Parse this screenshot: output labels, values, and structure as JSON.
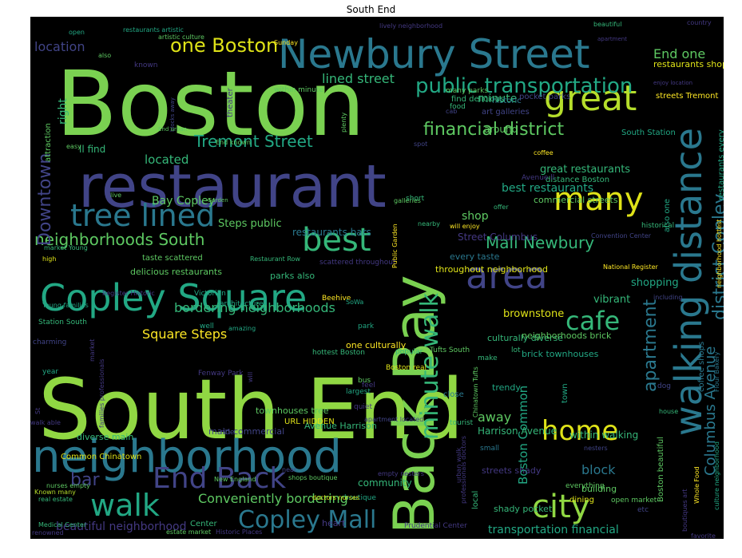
{
  "title": "South End",
  "palette": {
    "background": "#000000",
    "purple": "#440154",
    "indigo": "#3b528b",
    "teal": "#21918c",
    "green": "#5ec962",
    "lime": "#8fd744",
    "yellow": "#fde725"
  },
  "words": [
    {
      "text": "Boston",
      "size": 112,
      "color": "#7ad151"
    },
    {
      "text": "South End",
      "size": 104,
      "color": "#90d743"
    },
    {
      "text": "restaurant",
      "size": 74,
      "color": "#414487"
    },
    {
      "text": "Back Bay",
      "size": 70,
      "color": "#7ad151"
    },
    {
      "text": "neighborhood",
      "size": 56,
      "color": "#2a788e"
    },
    {
      "text": "Newbury Street",
      "size": 50,
      "color": "#2a788e"
    },
    {
      "text": "Copley Square",
      "size": 46,
      "color": "#22a884"
    },
    {
      "text": "walking distance",
      "size": 46,
      "color": "#2a788e"
    },
    {
      "text": "area",
      "size": 46,
      "color": "#414487"
    },
    {
      "text": "great",
      "size": 44,
      "color": "#b5de2b"
    },
    {
      "text": "many",
      "size": 40,
      "color": "#dfe318"
    },
    {
      "text": "tree lined",
      "size": 38,
      "color": "#2a788e"
    },
    {
      "text": "best",
      "size": 40,
      "color": "#35b779"
    },
    {
      "text": "city",
      "size": 40,
      "color": "#90d743"
    },
    {
      "text": "walk",
      "size": 38,
      "color": "#22a884"
    },
    {
      "text": "End Back",
      "size": 36,
      "color": "#414487"
    },
    {
      "text": "home",
      "size": 34,
      "color": "#dfe318"
    },
    {
      "text": "cafe",
      "size": 32,
      "color": "#35b779"
    },
    {
      "text": "minute walk",
      "size": 30,
      "color": "#35b779"
    },
    {
      "text": "Copley Mall",
      "size": 30,
      "color": "#2a788e"
    },
    {
      "text": "district Copley",
      "size": 22,
      "color": "#2a788e"
    },
    {
      "text": "public transportation",
      "size": 26,
      "color": "#22a884"
    },
    {
      "text": "one Boston",
      "size": 24,
      "color": "#dfe318"
    },
    {
      "text": "financial district",
      "size": 22,
      "color": "#5ec962"
    },
    {
      "text": "Tremont Street",
      "size": 20,
      "color": "#22a884"
    },
    {
      "text": "neighborhoods South",
      "size": 20,
      "color": "#5ec962"
    },
    {
      "text": "Mall Newbury",
      "size": 20,
      "color": "#35b779"
    },
    {
      "text": "bar",
      "size": 22,
      "color": "#414487"
    },
    {
      "text": "Downtown",
      "size": 22,
      "color": "#414487"
    },
    {
      "text": "apartment",
      "size": 22,
      "color": "#2a788e"
    },
    {
      "text": "Columbus Avenue",
      "size": 18,
      "color": "#2a788e"
    },
    {
      "text": "Conveniently bordering",
      "size": 16,
      "color": "#5ec962"
    },
    {
      "text": "bordering neighborhoods",
      "size": 16,
      "color": "#35b779"
    },
    {
      "text": "location",
      "size": 16,
      "color": "#414487"
    },
    {
      "text": "lined street",
      "size": 16,
      "color": "#35b779"
    },
    {
      "text": "End one",
      "size": 16,
      "color": "#5ec962"
    },
    {
      "text": "Square Steps",
      "size": 16,
      "color": "#fde725"
    },
    {
      "text": "beautiful neighborhood",
      "size": 14,
      "color": "#443983"
    },
    {
      "text": "transportation financial",
      "size": 14,
      "color": "#22a884"
    },
    {
      "text": "best restaurants",
      "size": 14,
      "color": "#22a884"
    },
    {
      "text": "great restaurants",
      "size": 13,
      "color": "#35b779"
    },
    {
      "text": "Bay Copley",
      "size": 14,
      "color": "#5ec962"
    },
    {
      "text": "block",
      "size": 16,
      "color": "#2a788e"
    },
    {
      "text": "Boston Common",
      "size": 15,
      "color": "#22a884"
    },
    {
      "text": "away",
      "size": 16,
      "color": "#5ec962"
    },
    {
      "text": "shop",
      "size": 14,
      "color": "#5ec962"
    },
    {
      "text": "located",
      "size": 15,
      "color": "#35b779"
    },
    {
      "text": "minute",
      "size": 14,
      "color": "#35b779"
    },
    {
      "text": "right",
      "size": 14,
      "color": "#35b779"
    },
    {
      "text": "brownstone",
      "size": 13,
      "color": "#dfe318"
    },
    {
      "text": "shopping",
      "size": 13,
      "color": "#22a884"
    },
    {
      "text": "vibrant",
      "size": 13,
      "color": "#35b779"
    },
    {
      "text": "Steps public",
      "size": 13,
      "color": "#5ec962"
    },
    {
      "text": "ll find",
      "size": 12,
      "color": "#35b779"
    },
    {
      "text": "restaurants bars",
      "size": 12,
      "color": "#2a788e"
    },
    {
      "text": "Street Columbus",
      "size": 12,
      "color": "#443983"
    },
    {
      "text": "every taste",
      "size": 11,
      "color": "#2a788e"
    },
    {
      "text": "throughout neighborhood",
      "size": 11,
      "color": "#dfe318"
    },
    {
      "text": "delicious restaurants",
      "size": 11,
      "color": "#5ec962"
    },
    {
      "text": "parks also",
      "size": 11,
      "color": "#35b779"
    },
    {
      "text": "culturally diverse",
      "size": 11,
      "color": "#35b779"
    },
    {
      "text": "neighborhoods brick",
      "size": 11,
      "color": "#5ec962"
    },
    {
      "text": "brick townhouses",
      "size": 11,
      "color": "#22a884"
    },
    {
      "text": "one culturally",
      "size": 11,
      "color": "#fde725"
    },
    {
      "text": "commercial streets",
      "size": 11,
      "color": "#5ec962"
    },
    {
      "text": "distance Boston",
      "size": 10,
      "color": "#35b779"
    },
    {
      "text": "pocket parks",
      "size": 10,
      "color": "#414487"
    },
    {
      "text": "art galleries",
      "size": 10,
      "color": "#414487"
    },
    {
      "text": "historic",
      "size": 10,
      "color": "#2a788e"
    },
    {
      "text": "around",
      "size": 12,
      "color": "#5ec962"
    },
    {
      "text": "South Station",
      "size": 10,
      "color": "#22a884"
    },
    {
      "text": "streets Tremont",
      "size": 10,
      "color": "#fde725"
    },
    {
      "text": "restaurants shops",
      "size": 11,
      "color": "#dfe318"
    },
    {
      "text": "restaurants every",
      "size": 10,
      "color": "#22a884"
    },
    {
      "text": "also one",
      "size": 10,
      "color": "#22a884"
    },
    {
      "text": "historical",
      "size": 9,
      "color": "#35b779"
    },
    {
      "text": "Convention Center",
      "size": 8,
      "color": "#414487"
    },
    {
      "text": "National Register",
      "size": 8,
      "color": "#fde725"
    },
    {
      "text": "neighborhood hottest",
      "size": 8,
      "color": "#fde725"
    },
    {
      "text": "coffee shops",
      "size": 10,
      "color": "#2a788e"
    },
    {
      "text": "including",
      "size": 8,
      "color": "#414487"
    },
    {
      "text": "dog",
      "size": 9,
      "color": "#414487"
    },
    {
      "text": "Flour Bakery",
      "size": 8,
      "color": "#2a788e"
    },
    {
      "text": "house",
      "size": 8,
      "color": "#35b779"
    },
    {
      "text": "Boston beautiful",
      "size": 10,
      "color": "#5ec962"
    },
    {
      "text": "Whole Food",
      "size": 8,
      "color": "#fde725"
    },
    {
      "text": "culture neighborhood",
      "size": 8,
      "color": "#22a884"
    },
    {
      "text": "boutiques art",
      "size": 8,
      "color": "#443983"
    },
    {
      "text": "favorite",
      "size": 8,
      "color": "#443983"
    },
    {
      "text": "Harrison Avenue",
      "size": 12,
      "color": "#35b779"
    },
    {
      "text": "within walking",
      "size": 12,
      "color": "#35b779"
    },
    {
      "text": "building",
      "size": 11,
      "color": "#5ec962"
    },
    {
      "text": "streets shady",
      "size": 11,
      "color": "#443983"
    },
    {
      "text": "shady pocket",
      "size": 11,
      "color": "#35b779"
    },
    {
      "text": "everything",
      "size": 9,
      "color": "#5ec962"
    },
    {
      "text": "open market",
      "size": 9,
      "color": "#5ec962"
    },
    {
      "text": "dining",
      "size": 10,
      "color": "#dfe318"
    },
    {
      "text": "local",
      "size": 10,
      "color": "#35b779"
    },
    {
      "text": "etc",
      "size": 9,
      "color": "#414487"
    },
    {
      "text": "Prudential Center",
      "size": 9,
      "color": "#443983"
    },
    {
      "text": "heart",
      "size": 11,
      "color": "#443983"
    },
    {
      "text": "boutique",
      "size": 9,
      "color": "#22a884"
    },
    {
      "text": "community",
      "size": 12,
      "color": "#35b779"
    },
    {
      "text": "nesters",
      "size": 8,
      "color": "#414487"
    },
    {
      "text": "urban walk",
      "size": 8,
      "color": "#443983"
    },
    {
      "text": "small",
      "size": 9,
      "color": "#2a788e"
    },
    {
      "text": "tourist",
      "size": 9,
      "color": "#35b779"
    },
    {
      "text": "close",
      "size": 10,
      "color": "#2a788e"
    },
    {
      "text": "trendy",
      "size": 11,
      "color": "#22a884"
    },
    {
      "text": "town",
      "size": 10,
      "color": "#22a884"
    },
    {
      "text": "Tufts South",
      "size": 9,
      "color": "#5ec962"
    },
    {
      "text": "make",
      "size": 9,
      "color": "#35b779"
    },
    {
      "text": "lot",
      "size": 9,
      "color": "#35b779"
    },
    {
      "text": "popular",
      "size": 9,
      "color": "#35b779"
    },
    {
      "text": "Boston real",
      "size": 9,
      "color": "#dfe318"
    },
    {
      "text": "quiet",
      "size": 9,
      "color": "#443983"
    },
    {
      "text": "bus",
      "size": 9,
      "color": "#5ec962"
    },
    {
      "text": "largest",
      "size": 9,
      "color": "#22a884"
    },
    {
      "text": "feel",
      "size": 9,
      "color": "#443983"
    },
    {
      "text": "park",
      "size": 9,
      "color": "#22a884"
    },
    {
      "text": "Beehive",
      "size": 9,
      "color": "#fde725"
    },
    {
      "text": "scattered throughout",
      "size": 9,
      "color": "#443983"
    },
    {
      "text": "professionals doctors",
      "size": 8,
      "color": "#443983"
    },
    {
      "text": "Chinatown Tufts",
      "size": 8,
      "color": "#5ec962"
    },
    {
      "text": "Public Garden",
      "size": 8,
      "color": "#fde725"
    },
    {
      "text": "apartment located",
      "size": 8,
      "color": "#414487"
    },
    {
      "text": "Avenue Harrison",
      "size": 11,
      "color": "#35b779"
    },
    {
      "text": "townhouses tree",
      "size": 11,
      "color": "#5ec962"
    },
    {
      "text": "URL HIDDEN",
      "size": 10,
      "color": "#dfe318"
    },
    {
      "text": "ride",
      "size": 9,
      "color": "#414487"
    },
    {
      "text": "main commercial",
      "size": 11,
      "color": "#414487"
    },
    {
      "text": "diverse main",
      "size": 11,
      "color": "#35b779"
    },
    {
      "text": "Common Chinatown",
      "size": 10,
      "color": "#dfe318"
    },
    {
      "text": "New England",
      "size": 8,
      "color": "#5ec962"
    },
    {
      "text": "near",
      "size": 8,
      "color": "#414487"
    },
    {
      "text": "empty nesters",
      "size": 8,
      "color": "#443983"
    },
    {
      "text": "shops boutique",
      "size": 8,
      "color": "#5ec962"
    },
    {
      "text": "doctors nurses",
      "size": 8,
      "color": "#dfe318"
    },
    {
      "text": "nurses empty",
      "size": 8,
      "color": "#5ec962"
    },
    {
      "text": "Known many",
      "size": 8,
      "color": "#b5de2b"
    },
    {
      "text": "real estate",
      "size": 8,
      "color": "#35b779"
    },
    {
      "text": "Medical Center",
      "size": 8,
      "color": "#35b779"
    },
    {
      "text": "renowned",
      "size": 8,
      "color": "#443983"
    },
    {
      "text": "estate market",
      "size": 8,
      "color": "#5ec962"
    },
    {
      "text": "Center",
      "size": 10,
      "color": "#35b779"
    },
    {
      "text": "Historic Places",
      "size": 8,
      "color": "#443983"
    },
    {
      "text": "walk able",
      "size": 8,
      "color": "#443983"
    },
    {
      "text": "families professionals",
      "size": 8,
      "color": "#443983"
    },
    {
      "text": "will",
      "size": 8,
      "color": "#443983"
    },
    {
      "text": "St",
      "size": 8,
      "color": "#443983"
    },
    {
      "text": "year",
      "size": 9,
      "color": "#22a884"
    },
    {
      "text": "market",
      "size": 8,
      "color": "#443983"
    },
    {
      "text": "Fenway Park",
      "size": 9,
      "color": "#443983"
    },
    {
      "text": "hottest Boston",
      "size": 9,
      "color": "#35b779"
    },
    {
      "text": "charming",
      "size": 9,
      "color": "#414487"
    },
    {
      "text": "amazing",
      "size": 8,
      "color": "#22a884"
    },
    {
      "text": "well",
      "size": 9,
      "color": "#22a884"
    },
    {
      "text": "Station South",
      "size": 9,
      "color": "#35b779"
    },
    {
      "text": "Young families",
      "size": 8,
      "color": "#22a884"
    },
    {
      "text": "Register Historic",
      "size": 8,
      "color": "#443983"
    },
    {
      "text": "Victorian",
      "size": 9,
      "color": "#22a884"
    },
    {
      "text": "architecture",
      "size": 9,
      "color": "#22a884"
    },
    {
      "text": "SoWa",
      "size": 8,
      "color": "#22a884"
    },
    {
      "text": "high",
      "size": 8,
      "color": "#dfe318"
    },
    {
      "text": "taste scattered",
      "size": 10,
      "color": "#5ec962"
    },
    {
      "text": "market Young",
      "size": 8,
      "color": "#35b779"
    },
    {
      "text": "Restaurant Row",
      "size": 8,
      "color": "#35b779"
    },
    {
      "text": "live",
      "size": 8,
      "color": "#5ec962"
    },
    {
      "text": "Garden",
      "size": 7,
      "color": "#5ec962"
    },
    {
      "text": "attraction",
      "size": 10,
      "color": "#5ec962"
    },
    {
      "text": "easy",
      "size": 8,
      "color": "#5ec962"
    },
    {
      "text": "blocks away",
      "size": 7,
      "color": "#414487"
    },
    {
      "text": "End urban",
      "size": 7,
      "color": "#5ec962"
    },
    {
      "text": "End known",
      "size": 8,
      "color": "#5ec962"
    },
    {
      "text": "plenty",
      "size": 8,
      "color": "#5ec962"
    },
    {
      "text": "galleries",
      "size": 8,
      "color": "#5ec962"
    },
    {
      "text": "short",
      "size": 9,
      "color": "#35b779"
    },
    {
      "text": "nearby",
      "size": 8,
      "color": "#35b779"
    },
    {
      "text": "offer",
      "size": 8,
      "color": "#35b779"
    },
    {
      "text": "Avenue ll",
      "size": 9,
      "color": "#443983"
    },
    {
      "text": "coffee",
      "size": 8,
      "color": "#fde725"
    },
    {
      "text": "will enjoy",
      "size": 8,
      "color": "#fde725"
    },
    {
      "text": "spot",
      "size": 8,
      "color": "#414487"
    },
    {
      "text": "cab",
      "size": 8,
      "color": "#414487"
    },
    {
      "text": "food",
      "size": 9,
      "color": "#35b779"
    },
    {
      "text": "many parks",
      "size": 9,
      "color": "#5ec962"
    },
    {
      "text": "find delicious",
      "size": 10,
      "color": "#35b779"
    },
    {
      "text": "within minute",
      "size": 9,
      "color": "#5ec962"
    },
    {
      "text": "theater",
      "size": 10,
      "color": "#443983"
    },
    {
      "text": "known",
      "size": 9,
      "color": "#443983"
    },
    {
      "text": "also",
      "size": 8,
      "color": "#5ec962"
    },
    {
      "text": "open",
      "size": 8,
      "color": "#22a884"
    },
    {
      "text": "restaurants artistic",
      "size": 8,
      "color": "#22a884"
    },
    {
      "text": "artistic culture",
      "size": 8,
      "color": "#5ec962"
    },
    {
      "text": "Sunday",
      "size": 8,
      "color": "#fde725"
    },
    {
      "text": "lively neighborhood",
      "size": 8,
      "color": "#443983"
    },
    {
      "text": "beautiful",
      "size": 8,
      "color": "#35b779"
    },
    {
      "text": "country",
      "size": 8,
      "color": "#443983"
    },
    {
      "text": "apartment",
      "size": 7,
      "color": "#443983"
    },
    {
      "text": "enjoy location",
      "size": 7,
      "color": "#443983"
    }
  ]
}
